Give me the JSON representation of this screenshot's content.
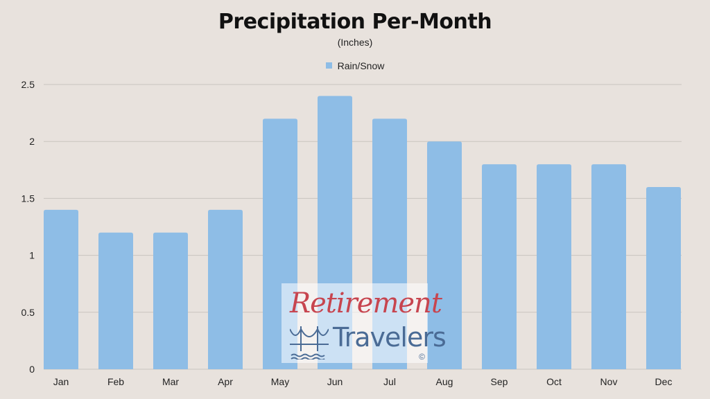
{
  "chart_data": {
    "type": "bar",
    "title": "Precipitation Per-Month",
    "subtitle": "(Inches)",
    "categories": [
      "Jan",
      "Feb",
      "Mar",
      "Apr",
      "May",
      "Jun",
      "Jul",
      "Aug",
      "Sep",
      "Oct",
      "Nov",
      "Dec"
    ],
    "series": [
      {
        "name": "Rain/Snow",
        "values": [
          1.4,
          1.2,
          1.2,
          1.4,
          2.2,
          2.4,
          2.2,
          2.0,
          1.8,
          1.8,
          1.8,
          1.6
        ],
        "color": "#8ebde6"
      }
    ],
    "ylim": [
      0,
      2.5
    ],
    "yticks": [
      "0",
      "0.5",
      "1",
      "1.5",
      "2",
      "2.5"
    ],
    "grid": true,
    "legend_position": "top"
  },
  "colors": {
    "background": "#e8e2dd",
    "bar": "#8ebde6",
    "gridline": "#c9c4bf"
  },
  "watermark": {
    "line1": "Retirement",
    "line2": "Travelers",
    "copyright": "©"
  }
}
